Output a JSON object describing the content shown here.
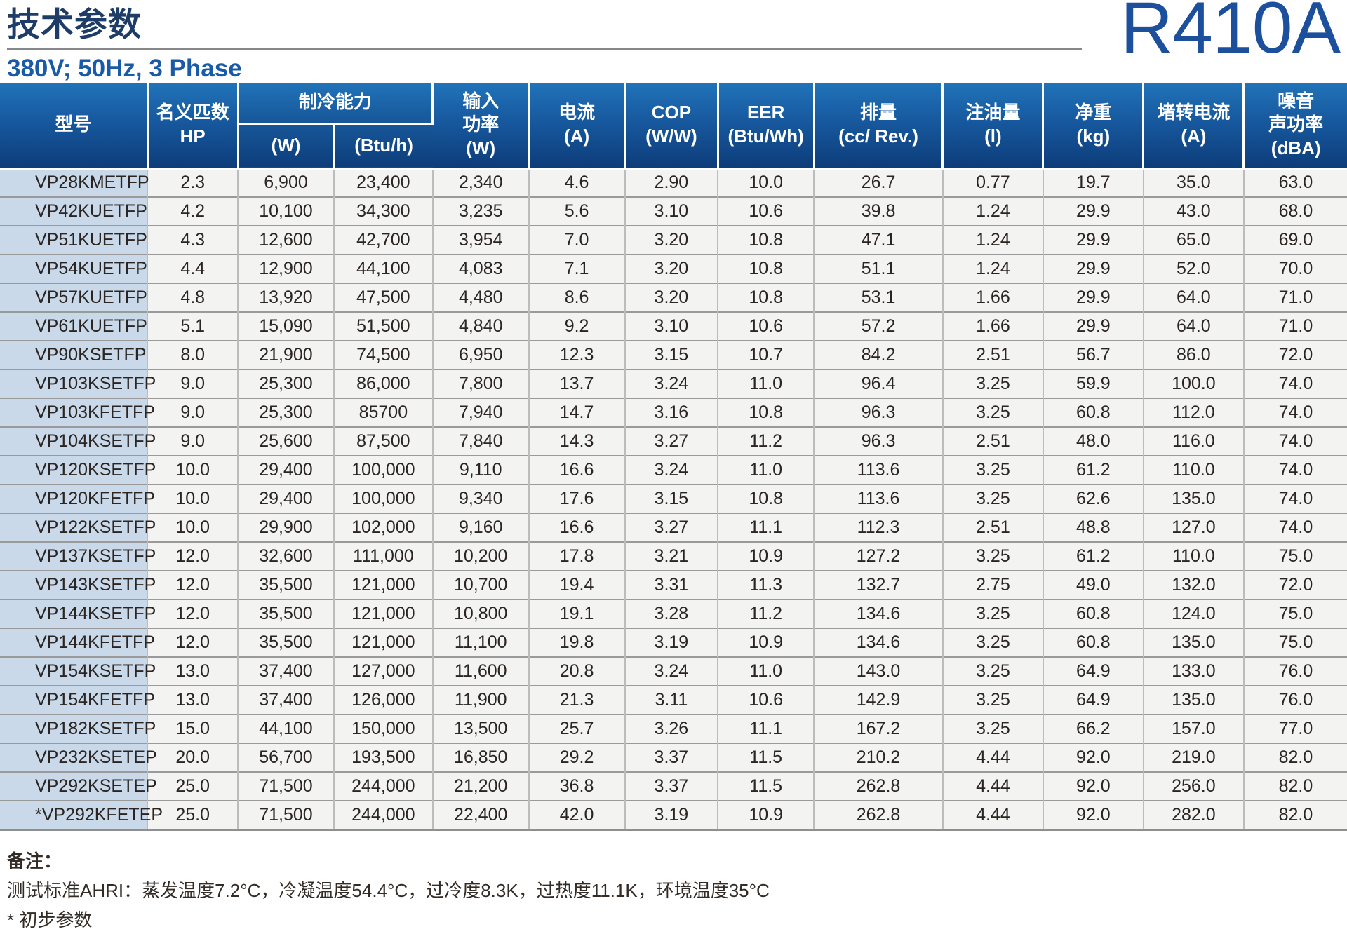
{
  "header": {
    "title": "技术参数",
    "subtitle": "380V; 50Hz, 3 Phase",
    "refrigerant": "R410A"
  },
  "table": {
    "columns": {
      "model": "型号",
      "hp": "名义匹数\nHP",
      "cooling_group": "制冷能力",
      "cooling_w": "(W)",
      "cooling_btuh": "(Btu/h)",
      "input": "输入\n功率\n(W)",
      "current": "电流\n(A)",
      "cop": "COP\n(W/W)",
      "eer": "EER\n(Btu/Wh)",
      "displacement": "排量\n(cc/ Rev.)",
      "oil": "注油量\n(l)",
      "weight": "净重\n(kg)",
      "locked_rotor": "堵转电流\n(A)",
      "noise": "噪音\n声功率\n(dBA)"
    },
    "row_fields": [
      "model",
      "type",
      "hp",
      "cooling_w",
      "cooling_btuh",
      "input_w",
      "current_a",
      "cop",
      "eer",
      "displacement",
      "oil",
      "weight",
      "locked_rotor_a",
      "noise_dba"
    ],
    "rows": [
      [
        "VP28KME",
        "TFP",
        "2.3",
        "6,900",
        "23,400",
        "2,340",
        "4.6",
        "2.90",
        "10.0",
        "26.7",
        "0.77",
        "19.7",
        "35.0",
        "63.0"
      ],
      [
        "VP42KUE",
        "TFP",
        "4.2",
        "10,100",
        "34,300",
        "3,235",
        "5.6",
        "3.10",
        "10.6",
        "39.8",
        "1.24",
        "29.9",
        "43.0",
        "68.0"
      ],
      [
        "VP51KUE",
        "TFP",
        "4.3",
        "12,600",
        "42,700",
        "3,954",
        "7.0",
        "3.20",
        "10.8",
        "47.1",
        "1.24",
        "29.9",
        "65.0",
        "69.0"
      ],
      [
        "VP54KUE",
        "TFP",
        "4.4",
        "12,900",
        "44,100",
        "4,083",
        "7.1",
        "3.20",
        "10.8",
        "51.1",
        "1.24",
        "29.9",
        "52.0",
        "70.0"
      ],
      [
        "VP57KUE",
        "TFP",
        "4.8",
        "13,920",
        "47,500",
        "4,480",
        "8.6",
        "3.20",
        "10.8",
        "53.1",
        "1.66",
        "29.9",
        "64.0",
        "71.0"
      ],
      [
        "VP61KUE",
        "TFP",
        "5.1",
        "15,090",
        "51,500",
        "4,840",
        "9.2",
        "3.10",
        "10.6",
        "57.2",
        "1.66",
        "29.9",
        "64.0",
        "71.0"
      ],
      [
        "VP90KSE",
        "TFP",
        "8.0",
        "21,900",
        "74,500",
        "6,950",
        "12.3",
        "3.15",
        "10.7",
        "84.2",
        "2.51",
        "56.7",
        "86.0",
        "72.0"
      ],
      [
        "VP103KSE",
        "TFP",
        "9.0",
        "25,300",
        "86,000",
        "7,800",
        "13.7",
        "3.24",
        "11.0",
        "96.4",
        "3.25",
        "59.9",
        "100.0",
        "74.0"
      ],
      [
        "VP103KFE",
        "TFP",
        "9.0",
        "25,300",
        "85700",
        "7,940",
        "14.7",
        "3.16",
        "10.8",
        "96.3",
        "3.25",
        "60.8",
        "112.0",
        "74.0"
      ],
      [
        "VP104KSE",
        "TFP",
        "9.0",
        "25,600",
        "87,500",
        "7,840",
        "14.3",
        "3.27",
        "11.2",
        "96.3",
        "2.51",
        "48.0",
        "116.0",
        "74.0"
      ],
      [
        "VP120KSE",
        "TFP",
        "10.0",
        "29,400",
        "100,000",
        "9,110",
        "16.6",
        "3.24",
        "11.0",
        "113.6",
        "3.25",
        "61.2",
        "110.0",
        "74.0"
      ],
      [
        "VP120KFE",
        "TFP",
        "10.0",
        "29,400",
        "100,000",
        "9,340",
        "17.6",
        "3.15",
        "10.8",
        "113.6",
        "3.25",
        "62.6",
        "135.0",
        "74.0"
      ],
      [
        "VP122KSE",
        "TFP",
        "10.0",
        "29,900",
        "102,000",
        "9,160",
        "16.6",
        "3.27",
        "11.1",
        "112.3",
        "2.51",
        "48.8",
        "127.0",
        "74.0"
      ],
      [
        "VP137KSE",
        "TFP",
        "12.0",
        "32,600",
        "111,000",
        "10,200",
        "17.8",
        "3.21",
        "10.9",
        "127.2",
        "3.25",
        "61.2",
        "110.0",
        "75.0"
      ],
      [
        "VP143KSE",
        "TFP",
        "12.0",
        "35,500",
        "121,000",
        "10,700",
        "19.4",
        "3.31",
        "11.3",
        "132.7",
        "2.75",
        "49.0",
        "132.0",
        "72.0"
      ],
      [
        "VP144KSE",
        "TFP",
        "12.0",
        "35,500",
        "121,000",
        "10,800",
        "19.1",
        "3.28",
        "11.2",
        "134.6",
        "3.25",
        "60.8",
        "124.0",
        "75.0"
      ],
      [
        "VP144KFE",
        "TFP",
        "12.0",
        "35,500",
        "121,000",
        "11,100",
        "19.8",
        "3.19",
        "10.9",
        "134.6",
        "3.25",
        "60.8",
        "135.0",
        "75.0"
      ],
      [
        "VP154KSE",
        "TFP",
        "13.0",
        "37,400",
        "127,000",
        "11,600",
        "20.8",
        "3.24",
        "11.0",
        "143.0",
        "3.25",
        "64.9",
        "133.0",
        "76.0"
      ],
      [
        "VP154KFE",
        "TFP",
        "13.0",
        "37,400",
        "126,000",
        "11,900",
        "21.3",
        "3.11",
        "10.6",
        "142.9",
        "3.25",
        "64.9",
        "135.0",
        "76.0"
      ],
      [
        "VP182KSE",
        "TFP",
        "15.0",
        "44,100",
        "150,000",
        "13,500",
        "25.7",
        "3.26",
        "11.1",
        "167.2",
        "3.25",
        "66.2",
        "157.0",
        "77.0"
      ],
      [
        "VP232KSE",
        "TEP",
        "20.0",
        "56,700",
        "193,500",
        "16,850",
        "29.2",
        "3.37",
        "11.5",
        "210.2",
        "4.44",
        "92.0",
        "219.0",
        "82.0"
      ],
      [
        "VP292KSE",
        "TEP",
        "25.0",
        "71,500",
        "244,000",
        "21,200",
        "36.8",
        "3.37",
        "11.5",
        "262.8",
        "4.44",
        "92.0",
        "256.0",
        "82.0"
      ],
      [
        "*VP292KFE",
        "TEP",
        "25.0",
        "71,500",
        "244,000",
        "22,400",
        "42.0",
        "3.19",
        "10.9",
        "262.8",
        "4.44",
        "92.0",
        "282.0",
        "82.0"
      ]
    ]
  },
  "notes": {
    "title": "备注：",
    "line1": "测试标准AHRI：蒸发温度7.2°C，冷凝温度54.4°C，过冷度8.3K，过热度11.1K，环境温度35°C",
    "line2": "* 初步参数"
  },
  "colors": {
    "header_blue_top": "#2173b9",
    "header_blue_bottom": "#0d3d7a",
    "model_column_bg": "#c9d9e9",
    "row_bg": "#f3f3f1",
    "title_navy": "#1e3c68",
    "subtitle_blue": "#1a5ba8",
    "refrigerant_blue": "#1c4f9c"
  }
}
